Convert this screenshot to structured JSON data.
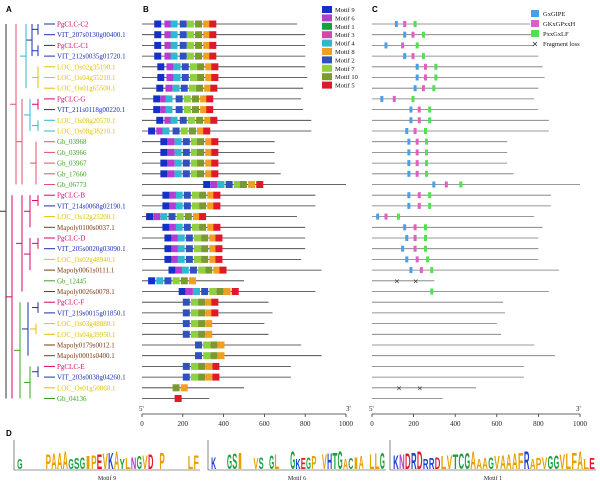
{
  "panels": {
    "a": "A",
    "b": "B",
    "c": "C",
    "d": "D"
  },
  "genes": [
    {
      "name": "PgCLC-C2",
      "color": "#e0006a"
    },
    {
      "name": "VIT_207s0130g00400.1",
      "color": "#1a2fb0"
    },
    {
      "name": "PgCLC-C1",
      "color": "#e0006a"
    },
    {
      "name": "VIT_212s0035g01720.1",
      "color": "#1a2fb0"
    },
    {
      "name": "LOC_Os02g35190.1",
      "color": "#e3c000"
    },
    {
      "name": "LOC_Os04g55210.1",
      "color": "#e3c000"
    },
    {
      "name": "LOC_Os01g65500.1",
      "color": "#e3c000"
    },
    {
      "name": "PgCLC-G",
      "color": "#e0006a"
    },
    {
      "name": "VIT_211s0118g00220.1",
      "color": "#1a2fb0"
    },
    {
      "name": "LOC_Os08g20570.1",
      "color": "#e3c000"
    },
    {
      "name": "LOC_Os08g38210.1",
      "color": "#e3c000"
    },
    {
      "name": "Gb_03968",
      "color": "#3aa320"
    },
    {
      "name": "Gb_03966",
      "color": "#3aa320"
    },
    {
      "name": "Gb_03967",
      "color": "#3aa320"
    },
    {
      "name": "Gb_17660",
      "color": "#3aa320"
    },
    {
      "name": "Gb_06773",
      "color": "#3aa320"
    },
    {
      "name": "PgCLC-B",
      "color": "#e0006a"
    },
    {
      "name": "VIT_214s0068g02190.1",
      "color": "#1a2fb0"
    },
    {
      "name": "LOC_Os12g25200.1",
      "color": "#e3c000"
    },
    {
      "name": "Mapoly0100s0037.1",
      "color": "#7a3a10"
    },
    {
      "name": "PgCLC-D",
      "color": "#e0006a"
    },
    {
      "name": "VIT_205s0020g03090.1",
      "color": "#1a2fb0"
    },
    {
      "name": "LOC_Os02g48940.1",
      "color": "#e3c000"
    },
    {
      "name": "Mapoly0061s0111.1",
      "color": "#7a3a10"
    },
    {
      "name": "Gb_12445",
      "color": "#3aa320"
    },
    {
      "name": "Mapoly0026s0078.1",
      "color": "#7a3a10"
    },
    {
      "name": "PgCLC-F",
      "color": "#e0006a"
    },
    {
      "name": "VIT_219s0015g01850.1",
      "color": "#1a2fb0"
    },
    {
      "name": "LOC_Os03g48880.1",
      "color": "#e3c000"
    },
    {
      "name": "LOC_Os04g39950.1",
      "color": "#e3c000"
    },
    {
      "name": "Mapoly0179s0012.1",
      "color": "#7a3a10"
    },
    {
      "name": "Mapoly0001s0400.1",
      "color": "#7a3a10"
    },
    {
      "name": "PgCLC-E",
      "color": "#e0006a"
    },
    {
      "name": "VIT_203s0038g04260.1",
      "color": "#1a2fb0"
    },
    {
      "name": "LOC_Os01g50860.1",
      "color": "#e3c000"
    },
    {
      "name": "Gb_04136",
      "color": "#3aa320"
    }
  ],
  "motif_legend": [
    {
      "label": "Motif 9",
      "color": "#1530c8"
    },
    {
      "label": "Motif 6",
      "color": "#b83ad0"
    },
    {
      "label": "Motif 1",
      "color": "#18a040"
    },
    {
      "label": "Motif 3",
      "color": "#d04aa8"
    },
    {
      "label": "Motif 4",
      "color": "#2fb8d0"
    },
    {
      "label": "Motif 8",
      "color": "#f0a020"
    },
    {
      "label": "Motif 2",
      "color": "#3050c0"
    },
    {
      "label": "Motif 7",
      "color": "#90d040"
    },
    {
      "label": "Motif 10",
      "color": "#7a9a30"
    },
    {
      "label": "Motif 5",
      "color": "#e0182a"
    }
  ],
  "domain_legend": [
    {
      "label": "GxGIPE",
      "color": "#4aa0e8",
      "kind": "box"
    },
    {
      "label": "GKxGPxxH",
      "color": "#e060c0",
      "kind": "box"
    },
    {
      "label": "PxxGxLF",
      "color": "#50e050",
      "kind": "box"
    },
    {
      "label": "Fragment loss",
      "color": "#222",
      "kind": "x"
    }
  ],
  "axis_b": {
    "start": "5'",
    "end": "3'",
    "ticks": [
      "0",
      "200",
      "400",
      "600",
      "800",
      "1000"
    ]
  },
  "axis_c": {
    "start": "5'",
    "end": "3'",
    "ticks": [
      "0",
      "200",
      "400",
      "600",
      "800",
      "1000"
    ]
  },
  "logos": [
    {
      "label": "Motif 9",
      "seq": "GxxxxPAAAGSGIPEVKAYLNGVDxPxxxxLF"
    },
    {
      "label": "Motif 6",
      "seq": "KxxGSIxxVSxGLxxGKEGPxVHTGACIAxLLG"
    },
    {
      "label": "Motif 1",
      "seq": "KNDRDRRDLVTCGAAAGVAAAFRAPVGGVLFALE"
    }
  ],
  "y_axis_letters": "bits"
}
